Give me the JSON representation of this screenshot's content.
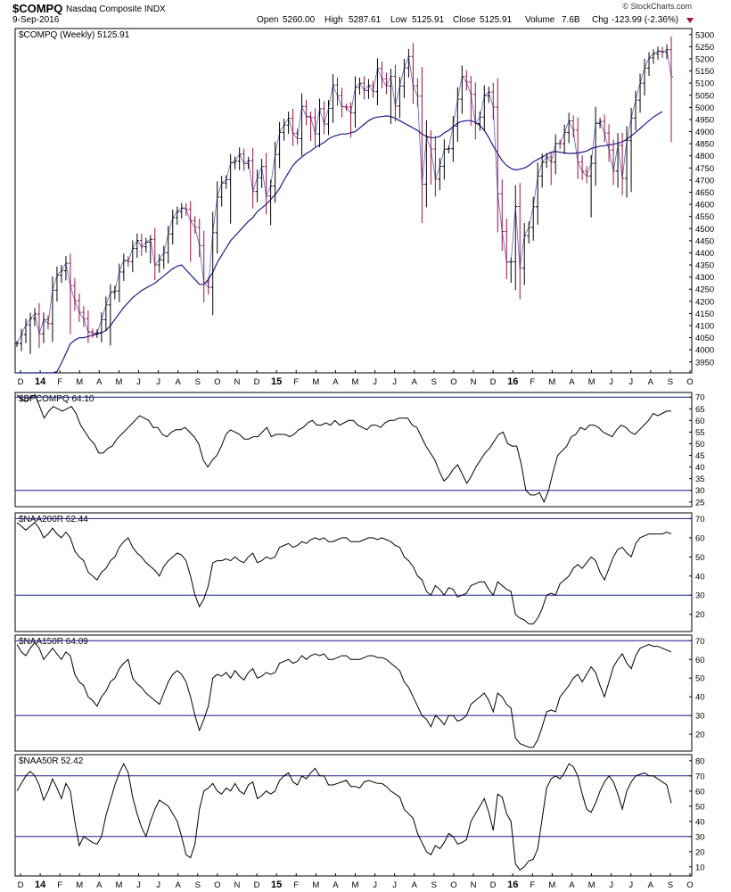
{
  "header": {
    "symbol": "$COMPQ",
    "name": "Nasdaq Composite INDX",
    "date": "9-Sep-2016",
    "brand": "© StockCharts.com",
    "ohlc": {
      "open_label": "Open",
      "open": "5260.00",
      "high_label": "High",
      "high": "5287.61",
      "low_label": "Low",
      "low": "5125.91",
      "close_label": "Close",
      "close": "5125.91",
      "volume_label": "Volume",
      "volume": "7.6B",
      "chg_label": "Chg",
      "chg": "-123.99 (-2.36%)"
    }
  },
  "colors": {
    "price_up": "#000000",
    "price_down": "#a01040",
    "moving_average": "#1a1a8c",
    "reference_line": "#1a1a8c",
    "indicator_line": "#000000",
    "grid": "#ffffff",
    "frame": "#000000"
  },
  "x_axis": {
    "labels": [
      "D",
      "14",
      "F",
      "M",
      "A",
      "M",
      "J",
      "J",
      "A",
      "S",
      "O",
      "N",
      "D",
      "15",
      "F",
      "M",
      "A",
      "M",
      "J",
      "J",
      "A",
      "S",
      "O",
      "N",
      "D",
      "16",
      "F",
      "M",
      "A",
      "M",
      "J",
      "J",
      "A",
      "S",
      "O"
    ],
    "bold_labels": [
      "14",
      "15",
      "16"
    ]
  },
  "chart_data": [
    {
      "type": "ohlc",
      "title": "$COMPQ (Weekly) 5125.91",
      "y_ticks": [
        3950,
        4000,
        4050,
        4100,
        4150,
        4200,
        4250,
        4300,
        4350,
        4400,
        4450,
        4500,
        4550,
        4600,
        4650,
        4700,
        4750,
        4800,
        4850,
        4900,
        4950,
        5000,
        5050,
        5100,
        5150,
        5200,
        5250,
        5300
      ],
      "ylim": [
        3905,
        5325
      ],
      "close": [
        4026,
        4063,
        4103,
        4129,
        4148,
        4066,
        4125,
        4108,
        4246,
        4308,
        4326,
        4357,
        4264,
        4203,
        4155,
        4128,
        4075,
        4067,
        4071,
        4124,
        4185,
        4237,
        4243,
        4321,
        4369,
        4364,
        4418,
        4451,
        4425,
        4444,
        4456,
        4350,
        4371,
        4401,
        4478,
        4545,
        4569,
        4585,
        4579,
        4532,
        4505,
        4430,
        4277,
        4258,
        4483,
        4630,
        4688,
        4702,
        4771,
        4778,
        4807,
        4768,
        4780,
        4653,
        4710,
        4756,
        4634,
        4676,
        4806,
        4897,
        4927,
        4955,
        4893,
        4871,
        5004,
        4963,
        4957,
        4891,
        4994,
        4931,
        4996,
        5092,
        5048,
        5003,
        5001,
        4977,
        5082,
        5100,
        5070,
        5090,
        5065,
        5160,
        5117,
        5088,
        5128,
        5005,
        5088,
        5163,
        5210,
        5088,
        5046,
        4683,
        4876,
        4828,
        4704,
        4757,
        4827,
        4830,
        4923,
        5034,
        5127,
        5104,
        5054,
        4933,
        4960,
        5048,
        5063,
        5001,
        4643,
        4488,
        4362,
        4363,
        4591,
        4337,
        4471,
        4505,
        4590,
        4717,
        4773,
        4795,
        4774,
        4851,
        4850,
        4897,
        4944,
        4906,
        4775,
        4736,
        4717,
        4769,
        4933,
        4942,
        4894,
        4824,
        4737,
        4843,
        4707,
        4863,
        4956,
        5030,
        5100,
        5162,
        5204,
        5221,
        5232,
        5228,
        5238,
        5126
      ],
      "low_offset_mode": "auto",
      "moving_average": {
        "name": "40-week MA",
        "values": [
          3905,
          3905,
          3905,
          3905,
          3905,
          3905,
          3905,
          3905,
          3905,
          3910,
          3945,
          3985,
          4025,
          4040,
          4050,
          4050,
          4055,
          4060,
          4065,
          4070,
          4080,
          4100,
          4125,
          4150,
          4175,
          4195,
          4215,
          4230,
          4245,
          4255,
          4265,
          4275,
          4290,
          4305,
          4320,
          4335,
          4345,
          4350,
          4330,
          4310,
          4290,
          4270,
          4270,
          4290,
          4320,
          4360,
          4390,
          4420,
          4450,
          4470,
          4490,
          4510,
          4530,
          4545,
          4570,
          4585,
          4600,
          4620,
          4640,
          4665,
          4700,
          4730,
          4760,
          4780,
          4795,
          4810,
          4820,
          4835,
          4845,
          4855,
          4870,
          4880,
          4885,
          4890,
          4890,
          4895,
          4900,
          4915,
          4930,
          4945,
          4955,
          4960,
          4962,
          4965,
          4962,
          4955,
          4945,
          4935,
          4925,
          4915,
          4905,
          4890,
          4880,
          4875,
          4875,
          4880,
          4895,
          4905,
          4920,
          4935,
          4942,
          4945,
          4945,
          4938,
          4925,
          4905,
          4875,
          4840,
          4810,
          4780,
          4760,
          4748,
          4742,
          4745,
          4750,
          4760,
          4775,
          4785,
          4795,
          4805,
          4815,
          4818,
          4815,
          4812,
          4810,
          4810,
          4812,
          4815,
          4820,
          4830,
          4835,
          4840,
          4842,
          4845,
          4848,
          4852,
          4858,
          4868,
          4882,
          4897,
          4913,
          4929,
          4945,
          4960,
          4972,
          4982
        ]
      }
    },
    {
      "type": "line",
      "title": "$BPCOMPQ 64.10",
      "y_ticks": [
        25,
        30,
        35,
        40,
        45,
        50,
        55,
        60,
        65,
        70
      ],
      "ylim": [
        23,
        72
      ],
      "reference_lines": [
        70,
        30
      ],
      "values": [
        71,
        69,
        68,
        70,
        71,
        66,
        61,
        64,
        66,
        65,
        64,
        65,
        66,
        63,
        58,
        55,
        52,
        50,
        46,
        46,
        48,
        49,
        52,
        54,
        56,
        58,
        60,
        62,
        61,
        60,
        57,
        57,
        54,
        53,
        55,
        56,
        56,
        57,
        55,
        53,
        50,
        43,
        40,
        43,
        45,
        49,
        54,
        56,
        55,
        54,
        52,
        52,
        53,
        53,
        55,
        57,
        53,
        54,
        54,
        54,
        53,
        54,
        56,
        57,
        59,
        60,
        58,
        58,
        59,
        58,
        60,
        58,
        59,
        60,
        60,
        58,
        57,
        56,
        58,
        58,
        57,
        59,
        60,
        60,
        61,
        61,
        61,
        58,
        57,
        53,
        49,
        46,
        43,
        38,
        34,
        36,
        39,
        41,
        37,
        33,
        36,
        40,
        43,
        46,
        48,
        51,
        54,
        55,
        50,
        49,
        49,
        41,
        30,
        28,
        28,
        29,
        25,
        30,
        38,
        45,
        47,
        49,
        53,
        54,
        57,
        56,
        58,
        58,
        57,
        55,
        54,
        53,
        56,
        58,
        57,
        55,
        54,
        56,
        58,
        60,
        63,
        62,
        63,
        64,
        64
      ],
      "last": 64.1
    },
    {
      "type": "line",
      "title": "$NAA200R 62.44",
      "y_ticks": [
        20,
        30,
        40,
        50,
        60,
        70
      ],
      "ylim": [
        11,
        73
      ],
      "reference_lines": [
        70,
        30
      ],
      "values": [
        68,
        66,
        64,
        66,
        68,
        65,
        60,
        62,
        65,
        62,
        60,
        63,
        60,
        53,
        50,
        48,
        42,
        40,
        38,
        42,
        44,
        48,
        50,
        55,
        58,
        60,
        55,
        52,
        50,
        47,
        45,
        43,
        40,
        45,
        48,
        50,
        52,
        51,
        48,
        40,
        30,
        24,
        28,
        35,
        47,
        48,
        48,
        49,
        48,
        50,
        48,
        47,
        50,
        52,
        47,
        48,
        50,
        49,
        50,
        55,
        56,
        57,
        55,
        56,
        58,
        57,
        59,
        60,
        59,
        60,
        58,
        58,
        59,
        60,
        60,
        58,
        58,
        58,
        59,
        60,
        60,
        59,
        60,
        59,
        58,
        56,
        55,
        50,
        48,
        45,
        40,
        38,
        32,
        30,
        35,
        33,
        30,
        34,
        33,
        29,
        30,
        31,
        35,
        36,
        37,
        37,
        33,
        30,
        37,
        35,
        33,
        32,
        20,
        18,
        17,
        15,
        15,
        18,
        23,
        30,
        31,
        30,
        36,
        38,
        40,
        44,
        46,
        44,
        47,
        50,
        48,
        42,
        38,
        44,
        50,
        54,
        55,
        52,
        50,
        57,
        60,
        61,
        62,
        62,
        62,
        62,
        63,
        62
      ],
      "last": 62.44
    },
    {
      "type": "line",
      "title": "$NAA150R 64.09",
      "y_ticks": [
        20,
        30,
        40,
        50,
        60,
        70
      ],
      "ylim": [
        11,
        73
      ],
      "reference_lines": [
        70,
        30
      ],
      "values": [
        68,
        64,
        62,
        66,
        69,
        66,
        60,
        63,
        66,
        63,
        60,
        64,
        62,
        52,
        48,
        46,
        40,
        38,
        35,
        40,
        43,
        48,
        50,
        55,
        58,
        60,
        50,
        47,
        45,
        42,
        40,
        38,
        36,
        42,
        48,
        52,
        54,
        52,
        48,
        40,
        30,
        22,
        28,
        35,
        50,
        52,
        51,
        53,
        50,
        54,
        51,
        49,
        53,
        55,
        50,
        51,
        53,
        52,
        53,
        58,
        59,
        60,
        58,
        59,
        62,
        60,
        62,
        63,
        62,
        63,
        60,
        60,
        61,
        62,
        62,
        60,
        60,
        60,
        61,
        62,
        62,
        61,
        61,
        60,
        58,
        56,
        54,
        48,
        45,
        40,
        35,
        30,
        28,
        24,
        30,
        28,
        25,
        30,
        30,
        27,
        28,
        30,
        36,
        38,
        40,
        42,
        38,
        32,
        42,
        40,
        36,
        34,
        18,
        15,
        14,
        13,
        13,
        17,
        24,
        32,
        33,
        32,
        40,
        43,
        46,
        50,
        52,
        48,
        52,
        56,
        53,
        46,
        40,
        48,
        56,
        60,
        63,
        58,
        55,
        62,
        66,
        67,
        68,
        67,
        67,
        66,
        65,
        64
      ],
      "last": 64.09
    },
    {
      "type": "line",
      "title": "$NAA50R 52.42",
      "y_ticks": [
        10,
        20,
        30,
        40,
        50,
        60,
        70,
        80
      ],
      "ylim": [
        4,
        84
      ],
      "reference_lines": [
        70,
        30
      ],
      "values": [
        60,
        65,
        70,
        73,
        70,
        64,
        54,
        60,
        68,
        62,
        55,
        65,
        60,
        40,
        24,
        30,
        28,
        26,
        25,
        30,
        44,
        54,
        64,
        72,
        78,
        72,
        56,
        45,
        36,
        30,
        40,
        48,
        54,
        52,
        50,
        45,
        40,
        30,
        18,
        16,
        25,
        48,
        60,
        62,
        65,
        60,
        58,
        62,
        60,
        65,
        60,
        58,
        64,
        66,
        55,
        57,
        60,
        58,
        60,
        67,
        70,
        72,
        66,
        64,
        70,
        68,
        72,
        75,
        70,
        70,
        64,
        64,
        65,
        66,
        67,
        63,
        63,
        62,
        66,
        67,
        66,
        65,
        65,
        63,
        60,
        58,
        56,
        48,
        45,
        42,
        32,
        26,
        20,
        18,
        24,
        22,
        26,
        32,
        30,
        25,
        26,
        28,
        40,
        45,
        50,
        55,
        46,
        34,
        58,
        56,
        45,
        40,
        12,
        8,
        10,
        14,
        15,
        22,
        42,
        62,
        68,
        70,
        68,
        72,
        78,
        76,
        70,
        58,
        48,
        46,
        52,
        60,
        66,
        70,
        66,
        58,
        48,
        60,
        66,
        70,
        71,
        72,
        70,
        70,
        68,
        66,
        64,
        52
      ],
      "last": 52.42
    }
  ]
}
